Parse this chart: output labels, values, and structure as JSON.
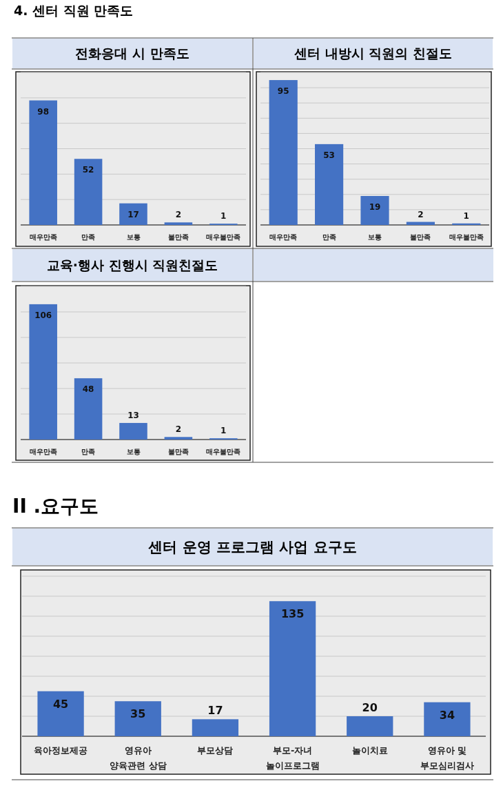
{
  "chart_data": [
    {
      "type": "bar",
      "title": "전화응대 시 만족도",
      "annotations": [
        "4. 센터 직원 만족도"
      ],
      "categories": [
        "매우만족",
        "만족",
        "보통",
        "불만족",
        "매우불만족"
      ],
      "values": [
        98,
        52,
        17,
        2,
        1
      ],
      "color": "#4472c4",
      "ylim": [
        0,
        120
      ],
      "yticks": [
        {
          "value": 0,
          "label": null
        },
        {
          "value": 20,
          "label": null
        },
        {
          "value": 40,
          "label": null
        },
        {
          "value": 60,
          "label": null
        },
        {
          "value": 80,
          "label": null
        },
        {
          "value": 100,
          "label": null
        },
        {
          "value": 120,
          "label": null
        }
      ],
      "grid": "y",
      "data_labels": true
    },
    {
      "type": "bar",
      "title": "센터 내방시 직원의 친절도",
      "categories": [
        "매우만족",
        "만족",
        "보통",
        "불만족",
        "매우불만족"
      ],
      "values": [
        95,
        53,
        19,
        2,
        1
      ],
      "color": "#4472c4",
      "ylim": [
        0,
        100
      ],
      "yticks": [
        {
          "value": 0,
          "label": null
        },
        {
          "value": 10,
          "label": null
        },
        {
          "value": 20,
          "label": null
        },
        {
          "value": 30,
          "label": null
        },
        {
          "value": 40,
          "label": null
        },
        {
          "value": 50,
          "label": null
        },
        {
          "value": 60,
          "label": null
        },
        {
          "value": 70,
          "label": null
        },
        {
          "value": 80,
          "label": null
        },
        {
          "value": 90,
          "label": null
        },
        {
          "value": 100,
          "label": null
        }
      ],
      "grid": "y",
      "data_labels": true
    },
    {
      "type": "bar",
      "title": "교육·행사 진행시 직원친절도",
      "categories": [
        "매우만족",
        "만족",
        "보통",
        "불만족",
        "매우불만족"
      ],
      "values": [
        106,
        48,
        13,
        2,
        1
      ],
      "color": "#4472c4",
      "ylim": [
        0,
        120
      ],
      "yticks": [
        {
          "value": 0,
          "label": null
        },
        {
          "value": 20,
          "label": null
        },
        {
          "value": 40,
          "label": null
        },
        {
          "value": 60,
          "label": null
        },
        {
          "value": 80,
          "label": null
        },
        {
          "value": 100,
          "label": null
        },
        {
          "value": 120,
          "label": null
        }
      ],
      "grid": "y",
      "data_labels": true
    },
    {
      "type": "bar",
      "title": "센터 운영 프로그램 사업 요구도",
      "annotations": [
        "II .요구도"
      ],
      "categories": [
        "육아정보제공",
        "영유아\n양육관련 상담",
        "부모상담",
        "부모-자녀\n놀이프로그램",
        "놀이치료",
        "영유아 및\n부모심리검사"
      ],
      "values": [
        45,
        35,
        17,
        135,
        20,
        34
      ],
      "color": "#4472c4",
      "ylim": [
        0,
        160
      ],
      "yticks": [
        {
          "value": 0,
          "label": null
        },
        {
          "value": 20,
          "label": null
        },
        {
          "value": 40,
          "label": null
        },
        {
          "value": 60,
          "label": null
        },
        {
          "value": 80,
          "label": null
        },
        {
          "value": 100,
          "label": null
        },
        {
          "value": 120,
          "label": null
        },
        {
          "value": 140,
          "label": null
        },
        {
          "value": 160,
          "label": null
        }
      ],
      "grid": "y",
      "data_labels": true
    }
  ]
}
